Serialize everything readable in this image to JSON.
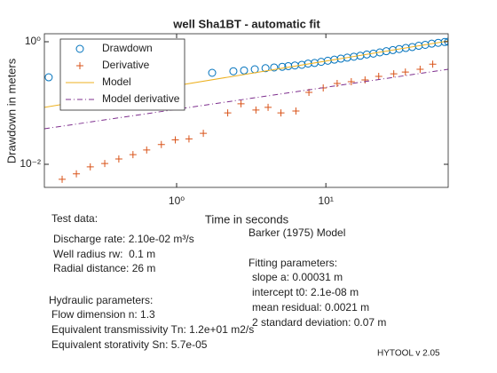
{
  "chart_data": {
    "type": "scatter",
    "title": "well Sha1BT - automatic fit",
    "xlabel": "Time in seconds",
    "ylabel": "Drawdown in meters",
    "xscale": "log",
    "yscale": "log",
    "xlim": [
      0.13,
      66
    ],
    "ylim": [
      0.0042,
      1.35
    ],
    "xticks": [
      {
        "value": 1,
        "label": "10⁰"
      },
      {
        "value": 10,
        "label": "10¹"
      }
    ],
    "yticks": [
      {
        "value": 0.01,
        "label": "10⁻²"
      },
      {
        "value": 1,
        "label": "10⁰"
      }
    ],
    "legend": "upper left",
    "series": [
      {
        "name": "Drawdown",
        "color": "#0072BD",
        "marker": "circle",
        "x": [
          0.139,
          1.73,
          2.4,
          2.83,
          3.34,
          3.94,
          4.5,
          5.1,
          5.6,
          6.2,
          6.9,
          7.6,
          8.4,
          9.3,
          10.3,
          11.4,
          12.6,
          13.9,
          15.4,
          17,
          18.8,
          20.8,
          23,
          25.4,
          28.1,
          31,
          34.3,
          37.9,
          41.9,
          46.3,
          51.2,
          56.6,
          62.5,
          66
        ],
        "values": [
          0.263,
          0.311,
          0.33,
          0.34,
          0.355,
          0.37,
          0.38,
          0.39,
          0.4,
          0.41,
          0.42,
          0.44,
          0.45,
          0.47,
          0.49,
          0.51,
          0.53,
          0.55,
          0.57,
          0.59,
          0.62,
          0.64,
          0.67,
          0.7,
          0.73,
          0.76,
          0.79,
          0.82,
          0.86,
          0.89,
          0.93,
          0.96,
          0.99,
          1.0
        ]
      },
      {
        "name": "Derivative",
        "color": "#D95319",
        "marker": "plus",
        "x": [
          0.171,
          0.213,
          0.264,
          0.33,
          0.41,
          0.51,
          0.63,
          0.79,
          0.98,
          1.21,
          1.51,
          2.2,
          2.7,
          3.4,
          4.1,
          5.0,
          6.3,
          7.7,
          9.6,
          11.9,
          14.8,
          18.3,
          22.6,
          28.5,
          34.1,
          42.8,
          52
        ],
        "values": [
          0.0057,
          0.007,
          0.0091,
          0.0103,
          0.0122,
          0.0144,
          0.0171,
          0.021,
          0.025,
          0.026,
          0.032,
          0.069,
          0.097,
          0.077,
          0.085,
          0.069,
          0.074,
          0.149,
          0.176,
          0.208,
          0.223,
          0.238,
          0.272,
          0.3,
          0.32,
          0.355,
          0.43
        ]
      },
      {
        "name": "Model",
        "color": "#EDB120",
        "marker": "line",
        "x": [
          0.13,
          66
        ],
        "values": [
          0.085,
          1.03
        ]
      },
      {
        "name": "Model derivative",
        "color": "#7E2F8E",
        "marker": "dashdot",
        "x": [
          0.13,
          66
        ],
        "values": [
          0.038,
          0.355
        ]
      }
    ],
    "annotations": [
      "Test data:",
      "Discharge rate: 2.10e-02 m³/s",
      "Well radius rw:  0.1 m",
      "Radial distance: 26 m",
      "Hydraulic parameters:",
      "Flow dimension n: 1.3",
      "Equivalent transmissivity Tn: 1.2e+01 m2/s",
      "Equivalent storativity Sn: 5.7e-05",
      "Barker (1975) Model",
      "Fitting parameters:",
      "slope a: 0.00031 m",
      "intercept t0: 2.1e-08 m",
      "mean residual: 0.0021 m",
      "2 standard deviation: 0.07 m",
      "HYTOOL v 2.05"
    ]
  }
}
